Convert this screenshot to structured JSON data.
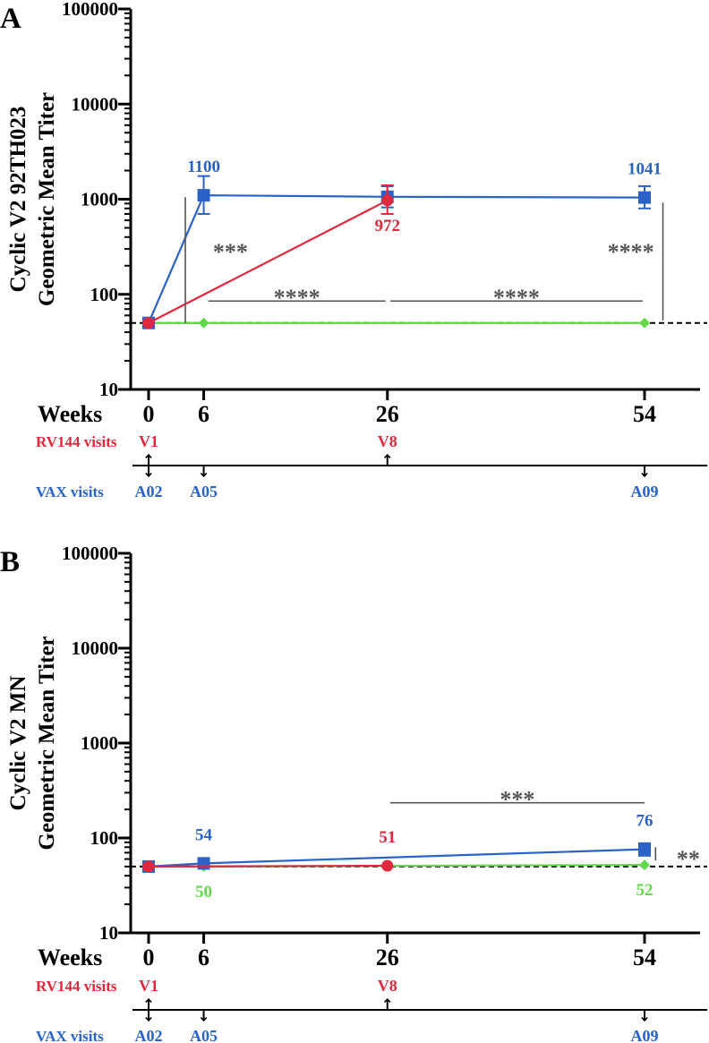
{
  "colors": {
    "blue": "#2a62c8",
    "red": "#e0283c",
    "green": "#62d84a",
    "sig": "#555555",
    "axis": "#000000"
  },
  "chart_data": [
    {
      "type": "line",
      "panel_label": "A",
      "ylabel_line1": "Cyclic V2 92TH023",
      "ylabel_line2": "Geometric Mean Titer",
      "xlabel": "Weeks",
      "yscale": "log",
      "ylim": [
        10,
        100000
      ],
      "y_ticks": [
        10,
        100,
        1000,
        10000,
        100000
      ],
      "y_tick_labels": [
        "10",
        "100",
        "1000",
        "10000",
        "100000"
      ],
      "x_ticks": [
        0,
        6,
        26,
        54
      ],
      "x_tick_labels": [
        "0",
        "6",
        "26",
        "54"
      ],
      "threshold": 50,
      "series": [
        {
          "name": "blue",
          "color": "blue",
          "marker": "square",
          "points": [
            {
              "x": 0,
              "y": 50
            },
            {
              "x": 6,
              "y": 1100,
              "err_lo": 700,
              "err_hi": 1750,
              "label": "1100",
              "label_pos": "above"
            },
            {
              "x": 26,
              "y": 1060,
              "err_lo": 820,
              "err_hi": 1370
            },
            {
              "x": 54,
              "y": 1041,
              "err_lo": 800,
              "err_hi": 1370,
              "label": "1041",
              "label_pos": "above"
            }
          ]
        },
        {
          "name": "red",
          "color": "red",
          "marker": "circle",
          "points": [
            {
              "x": 0,
              "y": 50
            },
            {
              "x": 26,
              "y": 972,
              "err_lo": 700,
              "err_hi": 1400,
              "label": "972",
              "label_pos": "below"
            }
          ]
        },
        {
          "name": "green",
          "color": "green",
          "marker": "diamond",
          "points": [
            {
              "x": 0,
              "y": 50
            },
            {
              "x": 6,
              "y": 50
            },
            {
              "x": 54,
              "y": 50
            }
          ]
        }
      ],
      "significance": [
        {
          "label": "***",
          "type": "vbar",
          "x": 4,
          "y1": 1050,
          "y2": 50,
          "text_x": 7,
          "text_y": 300
        },
        {
          "label": "****",
          "type": "hbar",
          "x1": 6.5,
          "x2": 25.8,
          "y": 85,
          "text_y": 100
        },
        {
          "label": "****",
          "type": "hbar",
          "x1": 26.3,
          "x2": 53.8,
          "y": 85,
          "text_y": 100
        },
        {
          "label": "****",
          "type": "vbar",
          "x": 56,
          "y1": 920,
          "y2": 53,
          "text_x": 52.5,
          "text_y": 300
        }
      ],
      "visits": {
        "rv144_label": "RV144 visits",
        "vax_label": "VAX visits",
        "rv144": [
          {
            "x": 0,
            "label": "V1"
          },
          {
            "x": 26,
            "label": "V8"
          }
        ],
        "vax": [
          {
            "x": 0,
            "label": "A02",
            "arrow": "both"
          },
          {
            "x": 6,
            "label": "A05",
            "arrow": "down"
          },
          {
            "x": 26,
            "label": "",
            "arrow": "up"
          },
          {
            "x": 54,
            "label": "A09",
            "arrow": "down"
          }
        ]
      }
    },
    {
      "type": "line",
      "panel_label": "B",
      "ylabel_line1": "Cyclic V2 MN",
      "ylabel_line2": "Geometric Mean Titer",
      "xlabel": "Weeks",
      "yscale": "log",
      "ylim": [
        10,
        100000
      ],
      "y_ticks": [
        10,
        100,
        1000,
        10000,
        100000
      ],
      "y_tick_labels": [
        "10",
        "100",
        "1000",
        "10000",
        "100000"
      ],
      "x_ticks": [
        0,
        6,
        26,
        54
      ],
      "x_tick_labels": [
        "0",
        "6",
        "26",
        "54"
      ],
      "threshold": 50,
      "series": [
        {
          "name": "blue",
          "color": "blue",
          "marker": "square",
          "points": [
            {
              "x": 0,
              "y": 50
            },
            {
              "x": 6,
              "y": 54,
              "label": "54",
              "label_pos": "above"
            },
            {
              "x": 54,
              "y": 76,
              "err_lo": 65,
              "err_hi": 88,
              "label": "76",
              "label_pos": "above"
            }
          ]
        },
        {
          "name": "red",
          "color": "red",
          "marker": "circle",
          "points": [
            {
              "x": 0,
              "y": 50
            },
            {
              "x": 26,
              "y": 51,
              "label": "51",
              "label_pos": "above"
            }
          ]
        },
        {
          "name": "green",
          "color": "green",
          "marker": "diamond",
          "points": [
            {
              "x": 0,
              "y": 50
            },
            {
              "x": 6,
              "y": 50,
              "label": "50",
              "label_pos": "below"
            },
            {
              "x": 54,
              "y": 52,
              "label": "52",
              "label_pos": "below"
            }
          ]
        }
      ],
      "significance": [
        {
          "label": "***",
          "type": "hbar",
          "x1": 26.3,
          "x2": 54,
          "y": 235,
          "text_y": 275
        },
        {
          "label": "**",
          "type": "vbar",
          "x": 55.2,
          "y1": 80,
          "y2": 58,
          "text_x": 57.5,
          "text_y": 65
        }
      ],
      "visits": {
        "rv144_label": "RV144 visits",
        "vax_label": "VAX visits",
        "rv144": [
          {
            "x": 0,
            "label": "V1"
          },
          {
            "x": 26,
            "label": "V8"
          }
        ],
        "vax": [
          {
            "x": 0,
            "label": "A02",
            "arrow": "both"
          },
          {
            "x": 6,
            "label": "A05",
            "arrow": "down"
          },
          {
            "x": 26,
            "label": "",
            "arrow": "up"
          },
          {
            "x": 54,
            "label": "A09",
            "arrow": "down"
          }
        ]
      }
    }
  ]
}
